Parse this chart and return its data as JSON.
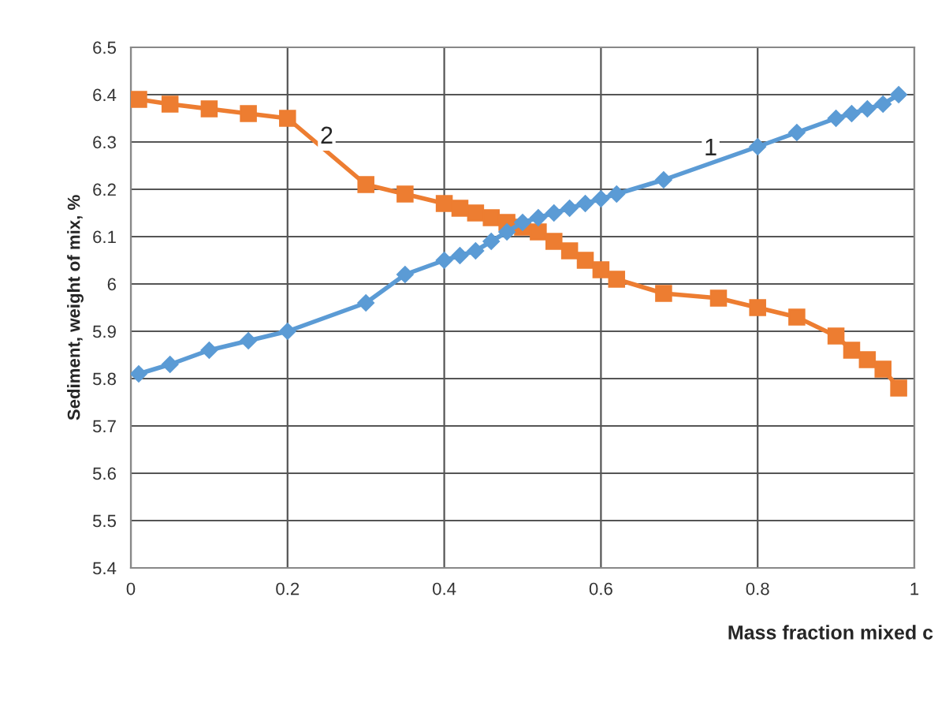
{
  "chart_data": {
    "type": "line",
    "xlabel": "Mass fraction mixed c",
    "ylabel": "Sediment, weight of mix, %",
    "xlim": [
      0,
      1
    ],
    "xticks": [
      0,
      0.2,
      0.4,
      0.6,
      0.8,
      1
    ],
    "ylim": [
      5.4,
      6.5
    ],
    "yticks": [
      5.4,
      5.5,
      5.6,
      5.7,
      5.8,
      5.9,
      6,
      6.1,
      6.2,
      6.3,
      6.4,
      6.5
    ],
    "grid": true,
    "legend": false,
    "series": [
      {
        "name": "1",
        "color": "#5b9bd5",
        "marker": "diamond",
        "x": [
          0.01,
          0.05,
          0.1,
          0.15,
          0.2,
          0.3,
          0.35,
          0.4,
          0.42,
          0.44,
          0.46,
          0.48,
          0.5,
          0.52,
          0.54,
          0.56,
          0.58,
          0.6,
          0.62,
          0.68,
          0.8,
          0.85,
          0.9,
          0.92,
          0.94,
          0.96,
          0.98
        ],
        "values": [
          5.81,
          5.83,
          5.86,
          5.88,
          5.9,
          5.96,
          6.02,
          6.05,
          6.06,
          6.07,
          6.09,
          6.11,
          6.13,
          6.14,
          6.15,
          6.16,
          6.17,
          6.18,
          6.19,
          6.22,
          6.29,
          6.32,
          6.35,
          6.36,
          6.37,
          6.38,
          6.4
        ]
      },
      {
        "name": "2",
        "color": "#ed7d31",
        "marker": "square",
        "x": [
          0.01,
          0.05,
          0.1,
          0.15,
          0.2,
          0.3,
          0.35,
          0.4,
          0.42,
          0.44,
          0.46,
          0.48,
          0.5,
          0.52,
          0.54,
          0.56,
          0.58,
          0.6,
          0.62,
          0.68,
          0.75,
          0.8,
          0.85,
          0.9,
          0.92,
          0.94,
          0.96,
          0.98
        ],
        "values": [
          6.39,
          6.38,
          6.37,
          6.36,
          6.35,
          6.21,
          6.19,
          6.17,
          6.16,
          6.15,
          6.14,
          6.13,
          6.12,
          6.11,
          6.09,
          6.07,
          6.05,
          6.03,
          6.01,
          5.98,
          5.97,
          5.95,
          5.93,
          5.89,
          5.86,
          5.84,
          5.82,
          5.78
        ]
      }
    ]
  }
}
